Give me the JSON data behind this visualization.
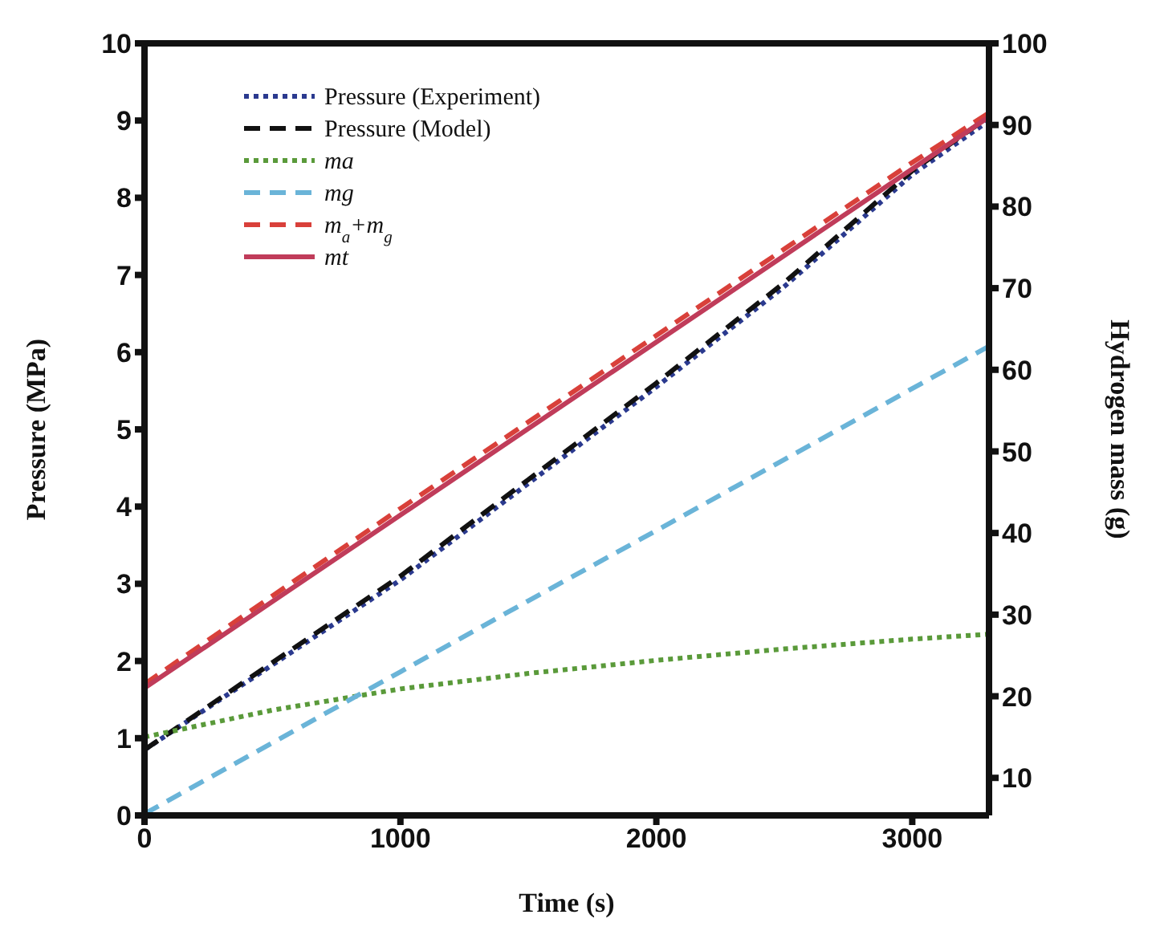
{
  "chart_data": {
    "type": "line",
    "xlabel": "Time (s)",
    "ylabel": "Pressure (MPa)",
    "y2label": "Hydrogen mass (g)",
    "x": [
      0,
      500,
      1000,
      1500,
      2000,
      2500,
      3000,
      3300
    ],
    "series": [
      {
        "name": "Pressure (Experiment)",
        "color": "#2b3a8f",
        "line_style": "dotted",
        "values": [
          0.85,
          1.95,
          3.05,
          4.3,
          5.55,
          6.85,
          8.3,
          9.0
        ]
      },
      {
        "name": "Pressure (Model)",
        "color": "#111111",
        "line_style": "dashed",
        "values": [
          0.85,
          1.98,
          3.1,
          4.35,
          5.6,
          6.9,
          8.35,
          9.05
        ]
      },
      {
        "name": "ma",
        "color": "#5a9a3a",
        "line_style": "dotted",
        "axis": "y2",
        "values": [
          15,
          18.3,
          20.9,
          22.8,
          24.4,
          25.8,
          27,
          27.6
        ]
      },
      {
        "name": "mg",
        "color": "#6ab4d8",
        "line_style": "dashed",
        "axis": "y2",
        "values": [
          5.6,
          14.3,
          23,
          31.7,
          40.3,
          49,
          57.7,
          62.9
        ]
      },
      {
        "name": "m$_{a}$+m$_{g}$",
        "color": "#d9403a",
        "line_style": "dashed",
        "axis": "y2",
        "values": [
          21.5,
          32.3,
          43,
          53.6,
          64.2,
          74.8,
          85.4,
          91.5
        ]
      },
      {
        "name": "mt",
        "color": "#c03c5a",
        "line_style": "solid",
        "axis": "y2",
        "values": [
          21,
          31.6,
          42.2,
          52.8,
          63.4,
          74,
          84.6,
          91
        ]
      }
    ],
    "xlim": [
      0,
      3300
    ],
    "xticks": [
      0,
      1000,
      2000,
      3000
    ],
    "ylim": [
      0,
      10
    ],
    "yticks": [
      0,
      1,
      2,
      3,
      4,
      5,
      6,
      7,
      8,
      9,
      10
    ],
    "y2lim": [
      5.4,
      100
    ],
    "y2ticks": [
      10,
      20,
      30,
      40,
      50,
      60,
      70,
      80,
      90,
      100
    ],
    "legend": "top left",
    "grid": false,
    "marker": "none"
  }
}
